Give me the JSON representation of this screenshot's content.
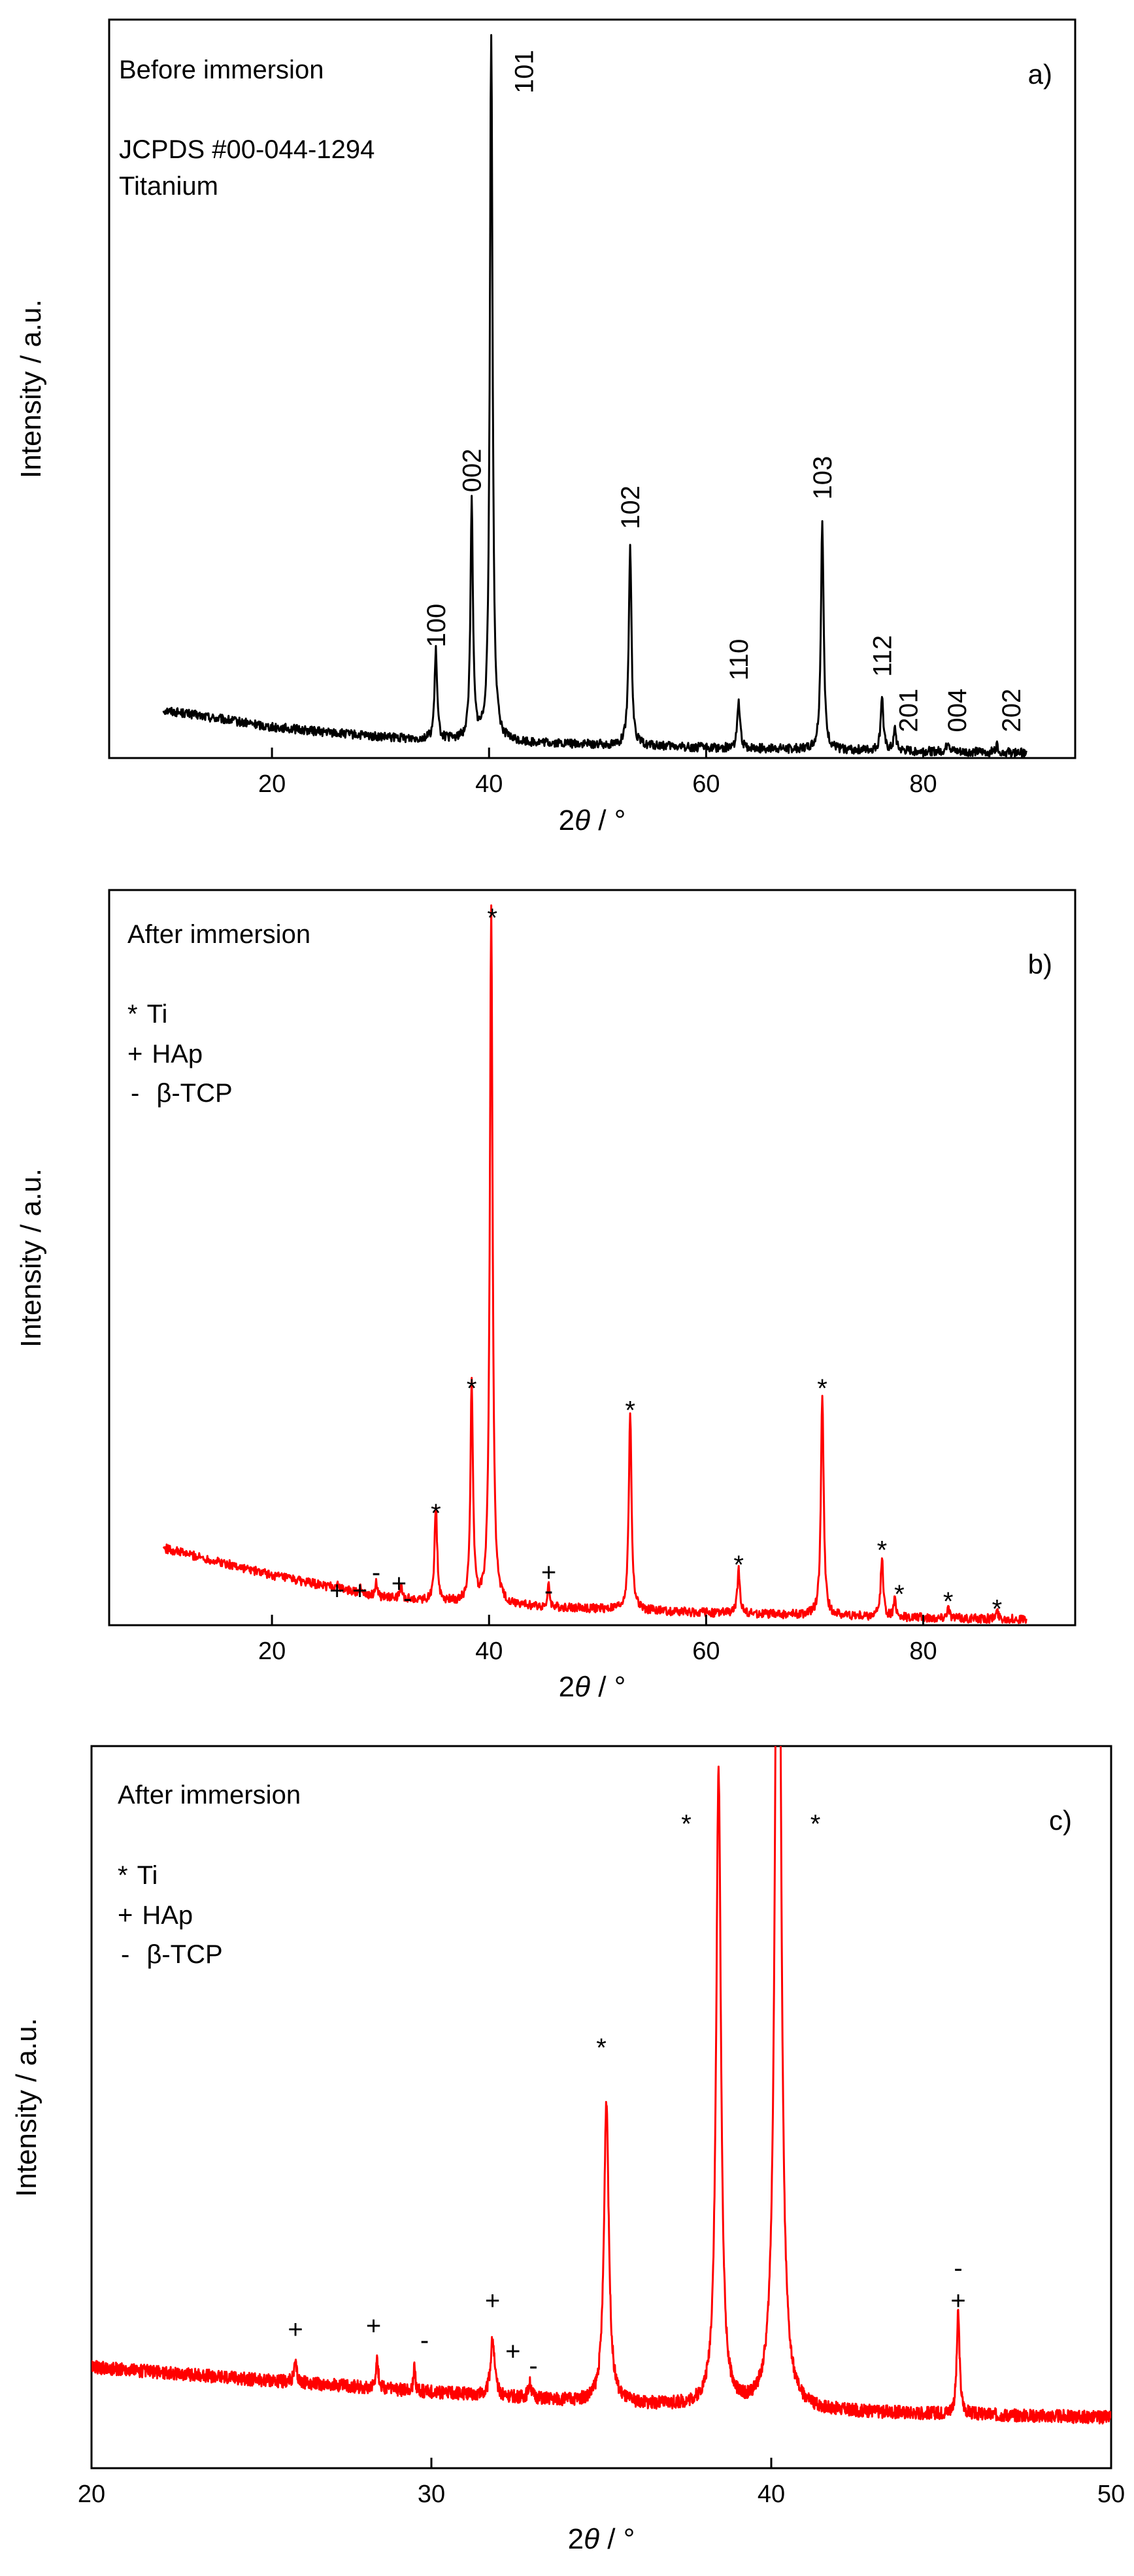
{
  "chart_data": [
    {
      "type": "line",
      "panel": "a)",
      "title": "Before immersion",
      "reference": "JCPDS #00-044-1294",
      "material": "Titanium",
      "xlabel_prefix": "2",
      "xlabel_symbol": "θ",
      "xlabel_suffix": " / °",
      "ylabel": "Intensity / a.u.",
      "xlim": [
        5,
        94
      ],
      "ylim": [
        0,
        100
      ],
      "xticks": [
        20,
        40,
        60,
        80
      ],
      "color": "#000000",
      "baseline": [
        [
          10,
          6.5
        ],
        [
          20,
          4.2
        ],
        [
          30,
          2.8
        ],
        [
          40,
          2.2
        ],
        [
          60,
          1.4
        ],
        [
          80,
          0.9
        ],
        [
          89.5,
          0.7
        ]
      ],
      "noise": 0.6,
      "peaks": [
        {
          "x": 35.1,
          "h": 12.0,
          "w": 0.28
        },
        {
          "x": 38.4,
          "h": 32.0,
          "w": 0.28
        },
        {
          "x": 40.2,
          "h": 96.0,
          "w": 0.3
        },
        {
          "x": 53.0,
          "h": 27.0,
          "w": 0.3
        },
        {
          "x": 63.0,
          "h": 6.5,
          "w": 0.28
        },
        {
          "x": 70.7,
          "h": 31.0,
          "w": 0.3
        },
        {
          "x": 76.2,
          "h": 7.5,
          "w": 0.28
        },
        {
          "x": 77.4,
          "h": 3.0,
          "w": 0.25
        },
        {
          "x": 82.3,
          "h": 1.5,
          "w": 0.3
        },
        {
          "x": 86.8,
          "h": 1.0,
          "w": 0.3
        }
      ],
      "peak_labels": [
        {
          "text": "100",
          "x": 35.1,
          "y": 15.0
        },
        {
          "text": "002",
          "x": 38.4,
          "y": 36.0
        },
        {
          "text": "101",
          "x": 43.2,
          "y": 90.0
        },
        {
          "text": "102",
          "x": 53.0,
          "y": 31.0
        },
        {
          "text": "110",
          "x": 63.0,
          "y": 10.5
        },
        {
          "text": "103",
          "x": 70.7,
          "y": 35.0
        },
        {
          "text": "112",
          "x": 76.2,
          "y": 11.0
        },
        {
          "text": "201",
          "x": 78.6,
          "y": 3.5
        },
        {
          "text": "004",
          "x": 83.1,
          "y": 3.5
        },
        {
          "text": "202",
          "x": 88.1,
          "y": 3.5
        }
      ],
      "legend": []
    },
    {
      "type": "line",
      "panel": "b)",
      "title": "After immersion",
      "xlabel_prefix": "2",
      "xlabel_symbol": "θ",
      "xlabel_suffix": " / °",
      "ylabel": "Intensity / a.u.",
      "xlim": [
        5,
        94
      ],
      "ylim": [
        0,
        100
      ],
      "xticks": [
        20,
        40,
        60,
        80
      ],
      "color": "#ff0000",
      "baseline": [
        [
          10,
          10.5
        ],
        [
          20,
          6.8
        ],
        [
          30,
          3.8
        ],
        [
          40,
          2.7
        ],
        [
          60,
          1.7
        ],
        [
          80,
          1.0
        ],
        [
          89.5,
          0.8
        ]
      ],
      "noise": 0.6,
      "peaks": [
        {
          "x": 26.0,
          "h": 0.8,
          "w": 0.25
        },
        {
          "x": 28.2,
          "h": 1.0,
          "w": 0.25
        },
        {
          "x": 29.6,
          "h": 2.2,
          "w": 0.18
        },
        {
          "x": 31.9,
          "h": 1.6,
          "w": 0.25
        },
        {
          "x": 35.1,
          "h": 13.0,
          "w": 0.28
        },
        {
          "x": 38.4,
          "h": 30.0,
          "w": 0.28
        },
        {
          "x": 40.2,
          "h": 95.0,
          "w": 0.3
        },
        {
          "x": 45.5,
          "h": 3.0,
          "w": 0.22
        },
        {
          "x": 53.0,
          "h": 27.0,
          "w": 0.3
        },
        {
          "x": 63.0,
          "h": 6.0,
          "w": 0.28
        },
        {
          "x": 70.7,
          "h": 30.0,
          "w": 0.3
        },
        {
          "x": 76.2,
          "h": 8.0,
          "w": 0.28
        },
        {
          "x": 77.4,
          "h": 2.5,
          "w": 0.25
        },
        {
          "x": 82.3,
          "h": 1.5,
          "w": 0.3
        },
        {
          "x": 86.8,
          "h": 1.0,
          "w": 0.3
        }
      ],
      "peak_labels": [
        {
          "text": "+",
          "x": 26.0,
          "y": 3.5
        },
        {
          "text": "+",
          "x": 28.1,
          "y": 3.5
        },
        {
          "text": "-",
          "x": 29.6,
          "y": 6.0
        },
        {
          "text": "+",
          "x": 31.7,
          "y": 4.5
        },
        {
          "text": "-",
          "x": 32.5,
          "y": 2.5
        },
        {
          "text": "*",
          "x": 35.1,
          "y": 16.0
        },
        {
          "text": "*",
          "x": 38.4,
          "y": 33.0
        },
        {
          "text": "*",
          "x": 40.3,
          "y": 97.0
        },
        {
          "text": "+",
          "x": 45.5,
          "y": 6.0
        },
        {
          "text": "-",
          "x": 45.5,
          "y": 3.5
        },
        {
          "text": "*",
          "x": 53.0,
          "y": 30.0
        },
        {
          "text": "*",
          "x": 63.0,
          "y": 9.0
        },
        {
          "text": "*",
          "x": 70.7,
          "y": 33.0
        },
        {
          "text": "*",
          "x": 76.2,
          "y": 11.0
        },
        {
          "text": "*",
          "x": 77.8,
          "y": 5.0
        },
        {
          "text": "*",
          "x": 82.3,
          "y": 4.0
        },
        {
          "text": "*",
          "x": 86.8,
          "y": 3.0
        }
      ],
      "legend": [
        {
          "symbol": "*",
          "label": "Ti"
        },
        {
          "symbol": "+",
          "label": "HAp"
        },
        {
          "symbol": "-",
          "label": "β-TCP"
        }
      ]
    },
    {
      "type": "line",
      "panel": "c)",
      "title": "After immersion",
      "xlabel_prefix": "2",
      "xlabel_symbol": "θ",
      "xlabel_suffix": " / °",
      "ylabel": "Intensity / a.u.",
      "xlim": [
        20,
        50
      ],
      "ylim": [
        0,
        100
      ],
      "xticks": [
        20,
        30,
        40,
        50
      ],
      "color": "#ff0000",
      "baseline": [
        [
          20,
          14.0
        ],
        [
          25,
          12.2
        ],
        [
          30,
          10.5
        ],
        [
          35,
          9.0
        ],
        [
          40,
          8.0
        ],
        [
          45,
          7.5
        ],
        [
          50,
          7.0
        ]
      ],
      "noise": 0.9,
      "peaks": [
        {
          "x": 26.0,
          "h": 2.5,
          "w": 0.1
        },
        {
          "x": 28.4,
          "h": 4.0,
          "w": 0.09
        },
        {
          "x": 29.5,
          "h": 3.5,
          "w": 0.06
        },
        {
          "x": 31.8,
          "h": 8.0,
          "w": 0.14
        },
        {
          "x": 32.9,
          "h": 2.0,
          "w": 0.12
        },
        {
          "x": 35.15,
          "h": 42.0,
          "w": 0.17
        },
        {
          "x": 38.45,
          "h": 88.0,
          "w": 0.17
        },
        {
          "x": 40.2,
          "h": 160.0,
          "w": 0.18
        },
        {
          "x": 45.5,
          "h": 14.0,
          "w": 0.1
        }
      ],
      "peak_labels": [
        {
          "text": "+",
          "x": 26.0,
          "y": 18.0
        },
        {
          "text": "+",
          "x": 28.3,
          "y": 18.5
        },
        {
          "text": "-",
          "x": 29.8,
          "y": 16.5
        },
        {
          "text": "+",
          "x": 31.8,
          "y": 22.0
        },
        {
          "text": "+",
          "x": 32.4,
          "y": 15.0
        },
        {
          "text": "-",
          "x": 33.0,
          "y": 13.0
        },
        {
          "text": "*",
          "x": 35.0,
          "y": 59.0
        },
        {
          "text": "*",
          "x": 37.5,
          "y": 90.0
        },
        {
          "text": "*",
          "x": 41.3,
          "y": 90.0
        },
        {
          "text": "-",
          "x": 45.5,
          "y": 26.5
        },
        {
          "text": "+",
          "x": 45.5,
          "y": 22.0
        }
      ],
      "legend": [
        {
          "symbol": "*",
          "label": "Ti"
        },
        {
          "symbol": "+",
          "label": "HAp"
        },
        {
          "symbol": "-",
          "label": "β-TCP"
        }
      ]
    }
  ]
}
